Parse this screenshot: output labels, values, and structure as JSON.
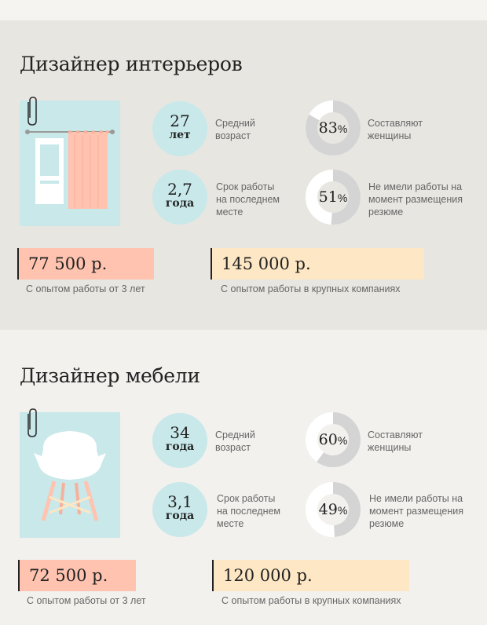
{
  "colors": {
    "salary_low": "#ffc3b0",
    "salary_high": "#fde7c4",
    "circle": "#c8e8ea",
    "donut_filled": "#d4d4d4",
    "donut_empty": "#ffffff"
  },
  "sections": [
    {
      "title": "Дизайнер интерьеров",
      "illustration": "window-with-curtain-icon",
      "age": {
        "value": "27",
        "unit": "лет",
        "label_line1": "Средний",
        "label_line2": "возраст"
      },
      "tenure": {
        "value": "2,7",
        "unit": "года",
        "label_line1": "Срок работы",
        "label_line2": "на последнем",
        "label_line3": "месте"
      },
      "women": {
        "value": "83",
        "percent_sign": "%",
        "fraction": 0.83,
        "label_line1": "Составляют",
        "label_line2": "женщины"
      },
      "unemployed": {
        "value": "51",
        "percent_sign": "%",
        "fraction": 0.51,
        "label_line1": "Не имели работы на",
        "label_line2": "момент размещения",
        "label_line3": "резюме"
      },
      "salary_low": {
        "value": "77 500 р.",
        "caption": "С опытом работы от 3 лет"
      },
      "salary_high": {
        "value": "145 000 р.",
        "caption": "С опытом работы в крупных компаниях"
      }
    },
    {
      "title": "Дизайнер мебели",
      "illustration": "chair-icon",
      "age": {
        "value": "34",
        "unit": "года",
        "label_line1": "Средний",
        "label_line2": "возраст"
      },
      "tenure": {
        "value": "3,1",
        "unit": "года",
        "label_line1": "Срок работы",
        "label_line2": "на последнем",
        "label_line3": "месте"
      },
      "women": {
        "value": "60",
        "percent_sign": "%",
        "fraction": 0.6,
        "label_line1": "Составляют",
        "label_line2": "женщины"
      },
      "unemployed": {
        "value": "49",
        "percent_sign": "%",
        "fraction": 0.49,
        "label_line1": "Не имели работы на",
        "label_line2": "момент размещения",
        "label_line3": "резюме"
      },
      "salary_low": {
        "value": "72 500 р.",
        "caption": "С опытом работы от 3 лет"
      },
      "salary_high": {
        "value": "120 000 р.",
        "caption": "С опытом работы в крупных компаниях"
      }
    }
  ]
}
